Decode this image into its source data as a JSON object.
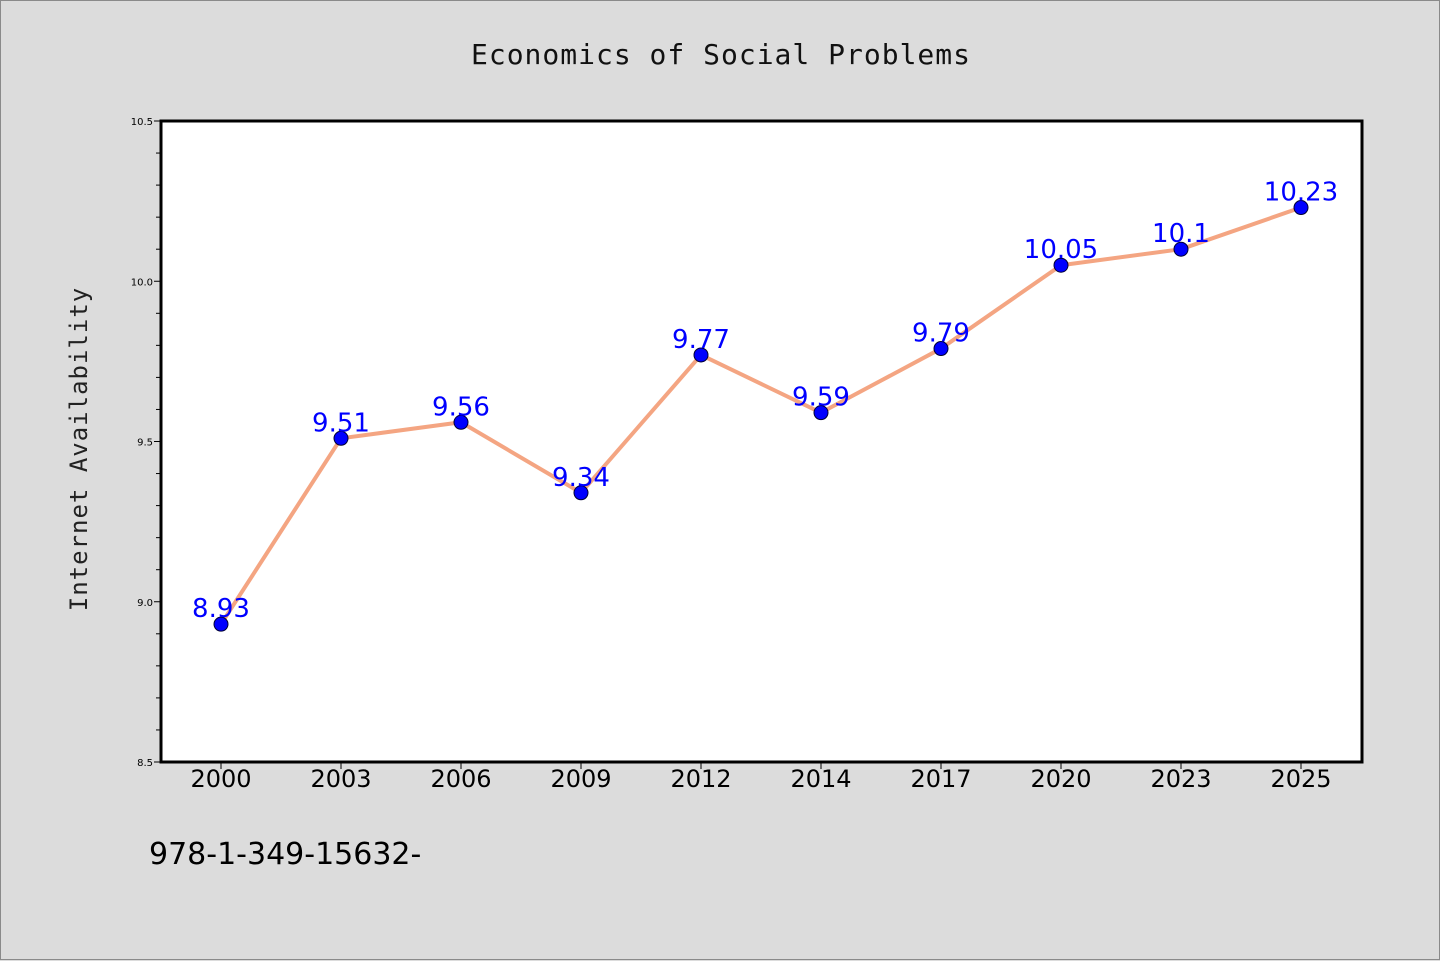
{
  "chart_data": {
    "type": "line",
    "title": "Economics of Social Problems",
    "ylabel": "Internet Availability",
    "xlabel": "",
    "categories": [
      "2000",
      "2003",
      "2006",
      "2009",
      "2012",
      "2014",
      "2017",
      "2020",
      "2023",
      "2025"
    ],
    "series": [
      {
        "values": [
          8.93,
          9.51,
          9.56,
          9.34,
          9.77,
          9.59,
          9.79,
          10.05,
          10.1,
          10.23
        ],
        "data_labels": [
          "8.93",
          "9.51",
          "9.56",
          "9.34",
          "9.77",
          "9.59",
          "9.79",
          "10.05",
          "10.1",
          "10.23"
        ],
        "line_color": "#f4a582",
        "marker_color": "#0000ff"
      }
    ],
    "ylim": [
      8.5,
      10.5
    ],
    "yticks": [
      "8.5",
      "9.0",
      "9.5",
      "10.0",
      "10.5"
    ],
    "grid": false,
    "legend": "none"
  },
  "footer": {
    "text": "978-1-349-15632-"
  },
  "colors": {
    "background": "#dcdcdc",
    "plot_background": "#ffffff",
    "line": "#f4a582",
    "marker": "#0000ff",
    "label": "#0000ff"
  }
}
